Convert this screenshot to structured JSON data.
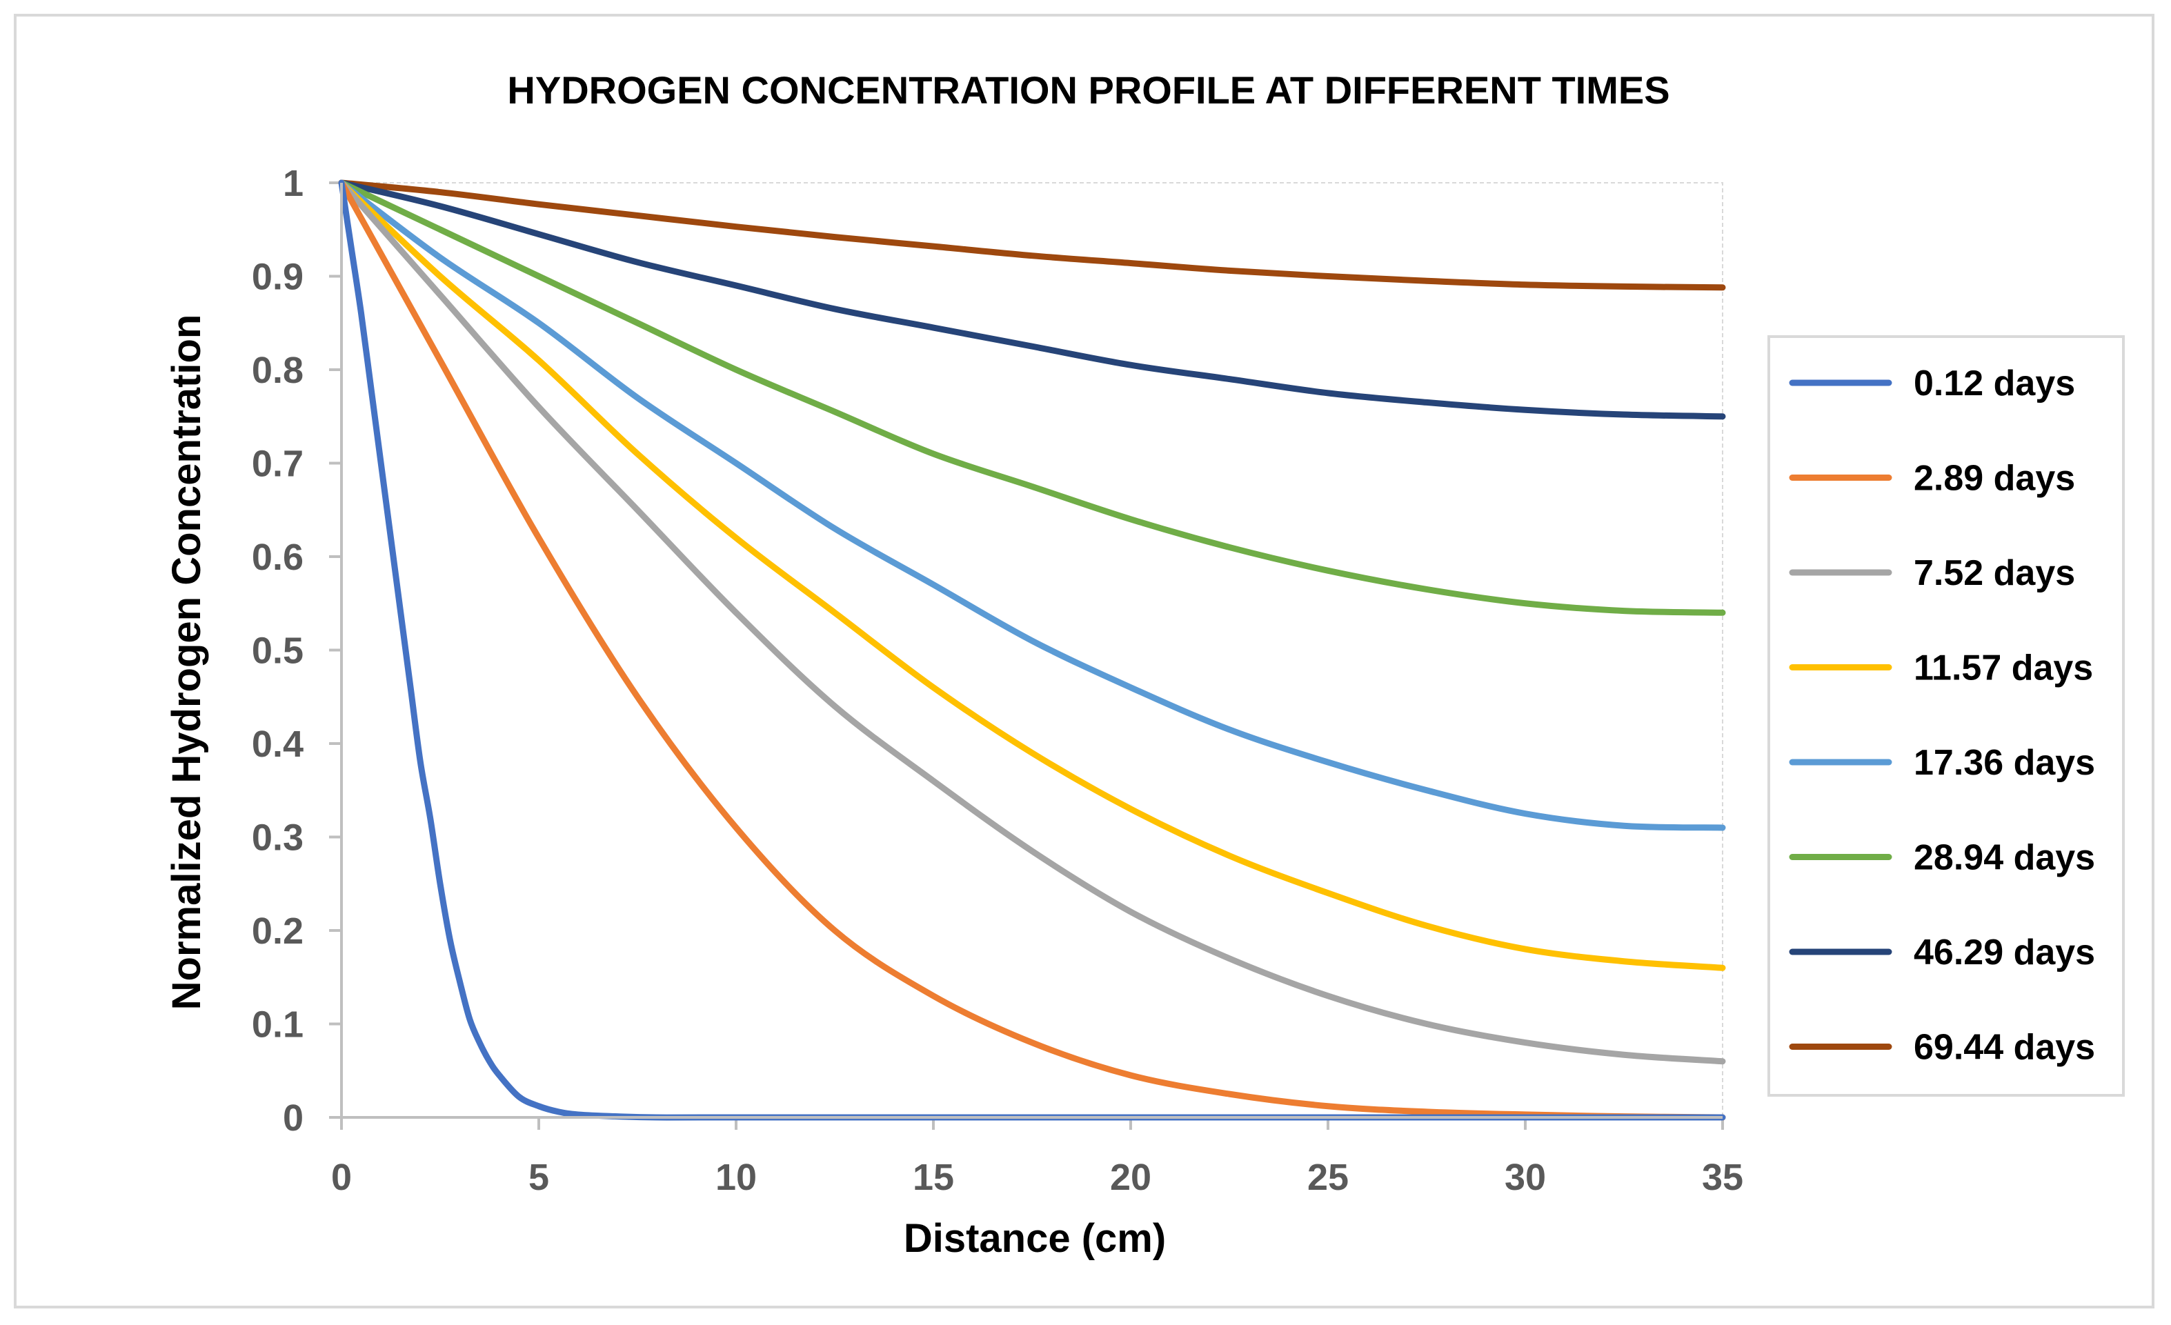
{
  "chart_data": {
    "type": "line",
    "title": "HYDROGEN CONCENTRATION PROFILE AT DIFFERENT TIMES",
    "xlabel": "Distance (cm)",
    "ylabel": "Normalized Hydrogen Concentration",
    "xlim": [
      0,
      35
    ],
    "ylim": [
      0,
      1
    ],
    "x_ticks": [
      "0",
      "5",
      "10",
      "15",
      "20",
      "25",
      "30",
      "35"
    ],
    "y_ticks": [
      "0",
      "0.1",
      "0.2",
      "0.3",
      "0.4",
      "0.5",
      "0.6",
      "0.7",
      "0.8",
      "0.9",
      "1"
    ],
    "legend_position": "right",
    "grid": false,
    "x": [
      0,
      2.5,
      5,
      7.5,
      10,
      12.5,
      15,
      17.5,
      20,
      22.5,
      25,
      27.5,
      30,
      32.5,
      35
    ],
    "series": [
      {
        "name": "0.12 days",
        "color": "#4472C4",
        "x": [
          0,
          0.25,
          0.5,
          0.75,
          1,
          1.25,
          1.5,
          1.75,
          2,
          2.25,
          2.5,
          2.75,
          3,
          3.25,
          3.5,
          3.75,
          4,
          4.5,
          5,
          5.5,
          6,
          7,
          8,
          10,
          15,
          20,
          25,
          30,
          35
        ],
        "values": [
          1.0,
          0.93,
          0.86,
          0.78,
          0.7,
          0.62,
          0.54,
          0.46,
          0.38,
          0.32,
          0.25,
          0.19,
          0.145,
          0.105,
          0.08,
          0.06,
          0.045,
          0.022,
          0.012,
          0.006,
          0.003,
          0.001,
          0.0,
          0.0,
          0.0,
          0.0,
          0.0,
          0.0,
          0.0
        ]
      },
      {
        "name": "2.89 days",
        "color": "#ED7D31",
        "x": [
          0,
          2.5,
          5,
          7.5,
          10,
          12.5,
          15,
          17.5,
          20,
          22.5,
          25,
          27.5,
          30,
          32.5,
          35
        ],
        "values": [
          1.0,
          0.81,
          0.62,
          0.45,
          0.31,
          0.2,
          0.13,
          0.08,
          0.045,
          0.025,
          0.012,
          0.006,
          0.003,
          0.001,
          0.0
        ]
      },
      {
        "name": "7.52 days",
        "color": "#A5A5A5",
        "x": [
          0,
          2.5,
          5,
          7.5,
          10,
          12.5,
          15,
          17.5,
          20,
          22.5,
          25,
          27.5,
          30,
          32.5,
          35
        ],
        "values": [
          1.0,
          0.88,
          0.76,
          0.65,
          0.54,
          0.44,
          0.36,
          0.285,
          0.22,
          0.17,
          0.13,
          0.1,
          0.08,
          0.067,
          0.06
        ]
      },
      {
        "name": "11.57 days",
        "color": "#FFC000",
        "x": [
          0,
          2.5,
          5,
          7.5,
          10,
          12.5,
          15,
          17.5,
          20,
          22.5,
          25,
          27.5,
          30,
          32.5,
          35
        ],
        "values": [
          1.0,
          0.9,
          0.81,
          0.71,
          0.62,
          0.54,
          0.46,
          0.39,
          0.33,
          0.28,
          0.24,
          0.205,
          0.18,
          0.167,
          0.16
        ]
      },
      {
        "name": "17.36 days",
        "color": "#5B9BD5",
        "x": [
          0,
          2.5,
          5,
          7.5,
          10,
          12.5,
          15,
          17.5,
          20,
          22.5,
          25,
          27.5,
          30,
          32.5,
          35
        ],
        "values": [
          1.0,
          0.92,
          0.85,
          0.77,
          0.7,
          0.63,
          0.57,
          0.51,
          0.46,
          0.415,
          0.38,
          0.35,
          0.325,
          0.312,
          0.31
        ]
      },
      {
        "name": "28.94 days",
        "color": "#70AD47",
        "x": [
          0,
          2.5,
          5,
          7.5,
          10,
          12.5,
          15,
          17.5,
          20,
          22.5,
          25,
          27.5,
          30,
          32.5,
          35
        ],
        "values": [
          1.0,
          0.95,
          0.9,
          0.85,
          0.8,
          0.755,
          0.71,
          0.675,
          0.64,
          0.61,
          0.585,
          0.565,
          0.55,
          0.542,
          0.54
        ]
      },
      {
        "name": "46.29 days",
        "color": "#264478",
        "x": [
          0,
          2.5,
          5,
          7.5,
          10,
          12.5,
          15,
          17.5,
          20,
          22.5,
          25,
          27.5,
          30,
          32.5,
          35
        ],
        "values": [
          1.0,
          0.975,
          0.945,
          0.915,
          0.89,
          0.865,
          0.845,
          0.825,
          0.805,
          0.79,
          0.775,
          0.765,
          0.757,
          0.752,
          0.75
        ]
      },
      {
        "name": "69.44 days",
        "color": "#9E480E",
        "x": [
          0,
          2.5,
          5,
          7.5,
          10,
          12.5,
          15,
          17.5,
          20,
          22.5,
          25,
          27.5,
          30,
          32.5,
          35
        ],
        "values": [
          1.0,
          0.99,
          0.977,
          0.965,
          0.953,
          0.942,
          0.932,
          0.922,
          0.914,
          0.906,
          0.9,
          0.895,
          0.891,
          0.889,
          0.888
        ]
      }
    ]
  }
}
